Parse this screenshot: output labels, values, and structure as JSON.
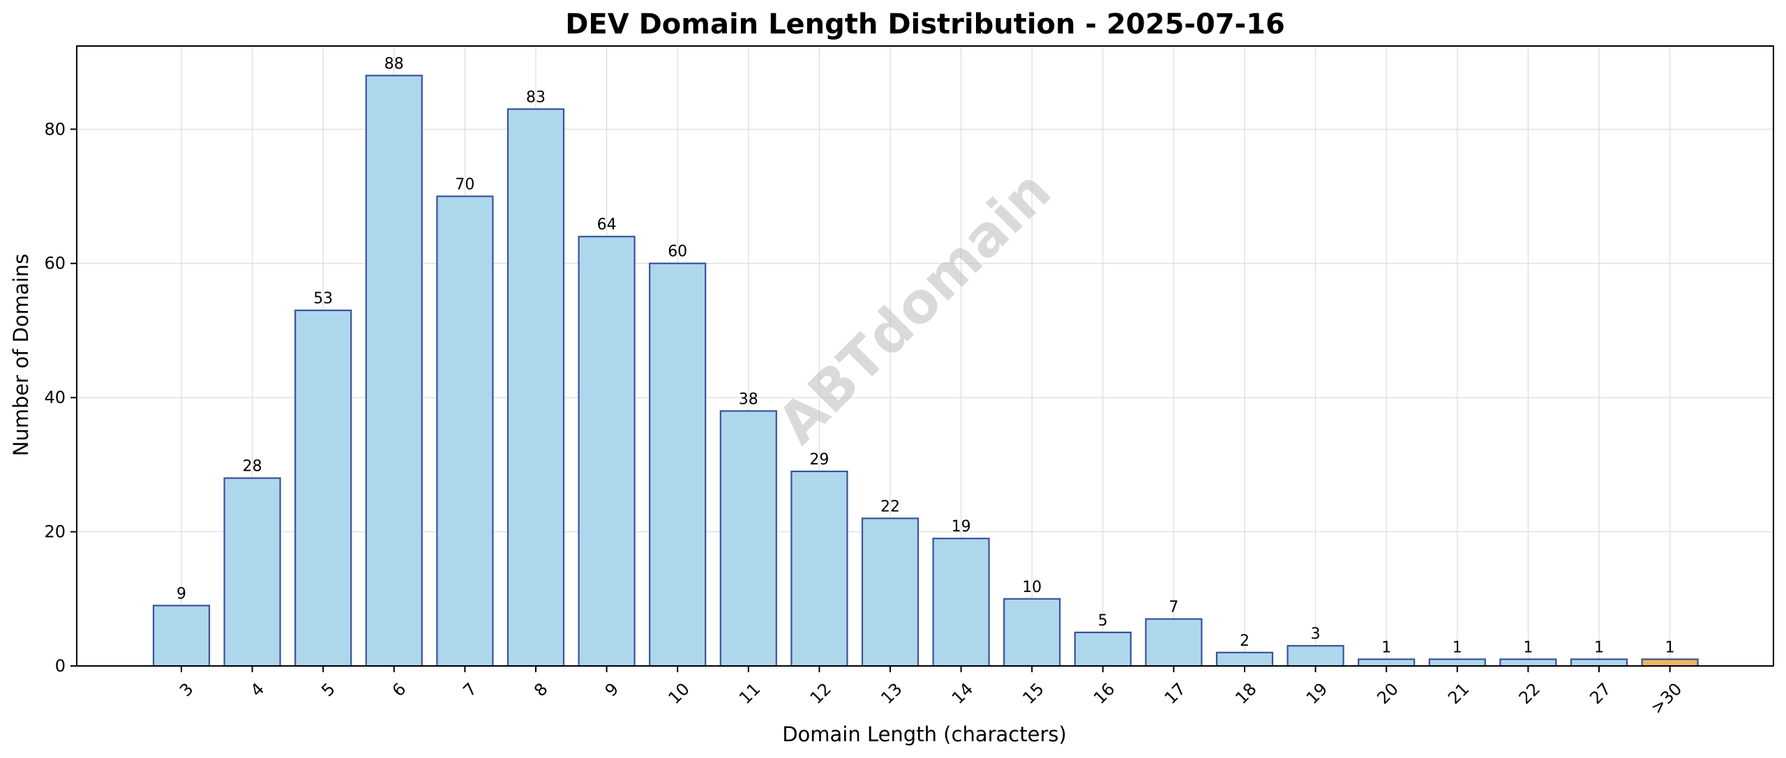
{
  "chart_data": {
    "type": "bar",
    "title": "DEV Domain Length Distribution - 2025-07-16",
    "xlabel": "Domain Length (characters)",
    "ylabel": "Number of Domains",
    "categories": [
      "3",
      "4",
      "5",
      "6",
      "7",
      "8",
      "9",
      "10",
      "11",
      "12",
      "13",
      "14",
      "15",
      "16",
      "17",
      "18",
      "19",
      "20",
      "21",
      "22",
      "27",
      ">30"
    ],
    "values": [
      9,
      28,
      53,
      88,
      70,
      83,
      64,
      60,
      38,
      29,
      22,
      19,
      10,
      5,
      7,
      2,
      3,
      1,
      1,
      1,
      1,
      1
    ],
    "ylim": [
      0,
      92.4
    ],
    "yticks": [
      0,
      20,
      40,
      60,
      80
    ],
    "grid": true,
    "watermark": "ABTdomain",
    "colors": {
      "bar_fill": "#add8ec",
      "bar_edge": "#3a4fa8",
      "highlight_fill": "#f6b457",
      "highlight_edge": "#3a4fa8",
      "highlight_category": ">30"
    }
  }
}
